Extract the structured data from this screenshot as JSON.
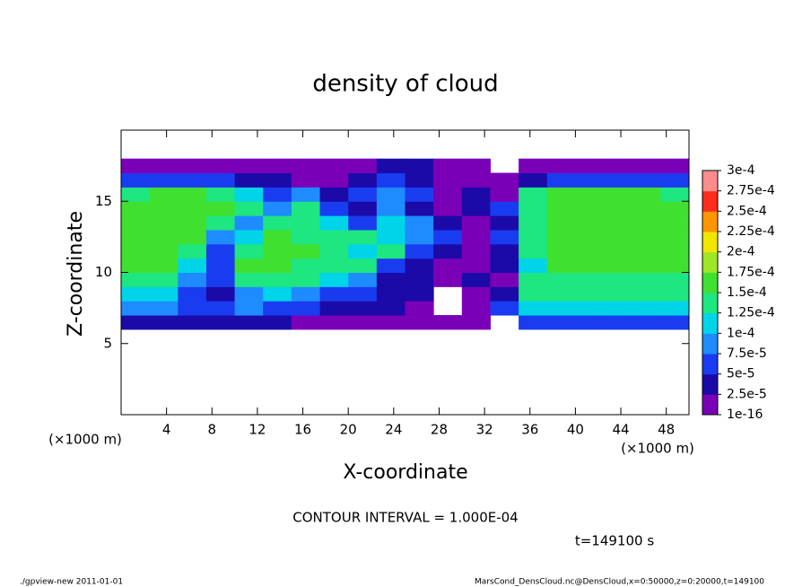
{
  "chart_data": {
    "type": "heatmap",
    "title": "density of cloud",
    "xlabel": "X-coordinate",
    "ylabel": "Z-coordinate",
    "x_unit_label": "(×1000 m)",
    "y_unit_label": "(×1000 m)",
    "xlim": [
      0,
      50
    ],
    "ylim": [
      0,
      20
    ],
    "xticks": [
      4,
      8,
      12,
      16,
      20,
      24,
      28,
      32,
      36,
      40,
      44,
      48
    ],
    "yticks": [
      5,
      10,
      15
    ],
    "x_edges": [
      0,
      2.5,
      5,
      7.5,
      10,
      12.5,
      15,
      17.5,
      20,
      22.5,
      25,
      27.5,
      30,
      32.5,
      35,
      37.5,
      40,
      42.5,
      45,
      47.5,
      50
    ],
    "z_edges": [
      6,
      7,
      8,
      9,
      10,
      11,
      12,
      13,
      14,
      15,
      16,
      17,
      18
    ],
    "z": [
      [
        4e-05,
        4e-05,
        4e-05,
        4e-05,
        4e-05,
        4e-05,
        1e-05,
        1e-05,
        1e-05,
        1e-05,
        1e-05,
        1e-05,
        1e-05,
        null,
        6e-05,
        6e-05,
        6e-05,
        6e-05,
        6e-05,
        6e-05
      ],
      [
        9e-05,
        9e-05,
        6e-05,
        6e-05,
        9e-05,
        6e-05,
        6e-05,
        4e-05,
        4e-05,
        4e-05,
        1e-05,
        null,
        1e-05,
        6e-05,
        0.00011,
        0.00011,
        0.00011,
        0.00011,
        0.00011,
        0.00011
      ],
      [
        0.00011,
        0.00011,
        6e-05,
        4e-05,
        9e-05,
        0.00011,
        9e-05,
        6e-05,
        6e-05,
        4e-05,
        4e-05,
        null,
        1e-05,
        4e-05,
        0.00014,
        0.00014,
        0.00014,
        0.00014,
        0.00014,
        0.00014
      ],
      [
        0.00014,
        0.00014,
        9e-05,
        6e-05,
        0.00014,
        0.00014,
        0.00014,
        0.00011,
        9e-05,
        4e-05,
        4e-05,
        1e-05,
        4e-05,
        1e-05,
        0.00014,
        0.00014,
        0.00014,
        0.00014,
        0.00014,
        0.00014
      ],
      [
        0.00016,
        0.00016,
        0.00011,
        6e-05,
        0.00016,
        0.00016,
        0.00014,
        0.00014,
        0.00014,
        6e-05,
        4e-05,
        1e-05,
        1e-05,
        4e-05,
        0.00011,
        0.00016,
        0.00016,
        0.00016,
        0.00016,
        0.00016
      ],
      [
        0.00016,
        0.00016,
        0.00014,
        6e-05,
        0.00014,
        0.00016,
        0.00016,
        0.00014,
        0.00011,
        0.00014,
        6e-05,
        4e-05,
        1e-05,
        4e-05,
        0.00014,
        0.00016,
        0.00016,
        0.00016,
        0.00016,
        0.00016
      ],
      [
        0.00016,
        0.00016,
        0.00016,
        9e-05,
        0.00011,
        0.00016,
        0.00014,
        0.00014,
        0.00014,
        0.00011,
        9e-05,
        6e-05,
        1e-05,
        6e-05,
        0.00014,
        0.00016,
        0.00016,
        0.00016,
        0.00016,
        0.00016
      ],
      [
        0.00016,
        0.00016,
        0.00016,
        0.00014,
        9e-05,
        0.00014,
        0.00014,
        0.00011,
        6e-05,
        0.00011,
        9e-05,
        4e-05,
        1e-05,
        4e-05,
        0.00014,
        0.00016,
        0.00016,
        0.00016,
        0.00016,
        0.00016
      ],
      [
        0.00016,
        0.00016,
        0.00016,
        0.00016,
        0.00014,
        9e-05,
        0.00014,
        6e-05,
        4e-05,
        9e-05,
        4e-05,
        1e-05,
        4e-05,
        6e-05,
        0.00014,
        0.00016,
        0.00016,
        0.00016,
        0.00016,
        0.00016
      ],
      [
        0.00014,
        0.00016,
        0.00016,
        0.00014,
        0.00011,
        6e-05,
        9e-05,
        4e-05,
        6e-05,
        9e-05,
        6e-05,
        1e-05,
        4e-05,
        1e-05,
        0.00014,
        0.00016,
        0.00016,
        0.00016,
        0.00016,
        0.00014
      ],
      [
        6e-05,
        6e-05,
        6e-05,
        6e-05,
        4e-05,
        4e-05,
        1e-05,
        1e-05,
        4e-05,
        6e-05,
        4e-05,
        1e-05,
        1e-05,
        1e-05,
        4e-05,
        6e-05,
        6e-05,
        6e-05,
        6e-05,
        6e-05
      ],
      [
        1e-05,
        1e-05,
        1e-05,
        1e-05,
        1e-05,
        1e-05,
        1e-05,
        1e-05,
        1e-05,
        4e-05,
        4e-05,
        1e-05,
        1e-05,
        null,
        1e-05,
        1e-05,
        1e-05,
        1e-05,
        1e-05,
        1e-05
      ]
    ],
    "levels": [
      {
        "value": 1e-16,
        "label": "1e-16"
      },
      {
        "value": 2.5e-05,
        "label": "2.5e-5"
      },
      {
        "value": 5e-05,
        "label": "5e-5"
      },
      {
        "value": 7.5e-05,
        "label": "7.5e-5"
      },
      {
        "value": 0.0001,
        "label": "1e-4"
      },
      {
        "value": 0.000125,
        "label": "1.25e-4"
      },
      {
        "value": 0.00015,
        "label": "1.5e-4"
      },
      {
        "value": 0.000175,
        "label": "1.75e-4"
      },
      {
        "value": 0.0002,
        "label": "2e-4"
      },
      {
        "value": 0.000225,
        "label": "2.25e-4"
      },
      {
        "value": 0.00025,
        "label": "2.5e-4"
      },
      {
        "value": 0.000275,
        "label": "2.75e-4"
      },
      {
        "value": 0.0003,
        "label": "3e-4"
      }
    ],
    "colors": [
      "#7a00b8",
      "#1c0aa8",
      "#1a3cf0",
      "#1e8cff",
      "#00d4e8",
      "#1ee680",
      "#3fe030",
      "#a0e628",
      "#f0e600",
      "#ff9600",
      "#ff2d1e",
      "#ff8c8c"
    ],
    "contour_note": "CONTOUR INTERVAL = 1.000E-04",
    "time_note": "t=149100 s",
    "footer_left": "./gpview-new  2011-01-01",
    "footer_right": "MarsCond_DensCloud.nc@DensCloud,x=0:50000,z=0:20000,t=149100"
  }
}
